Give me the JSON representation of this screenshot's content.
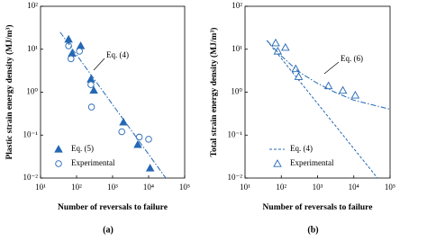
{
  "chart_data": [
    {
      "type": "scatter",
      "log_x": true,
      "log_y": true,
      "grid": false,
      "legend": "lower left",
      "x_label": "Number of reversals to failure",
      "y_label": "Plastic strain energy density (MJ/m³)",
      "caption": "(a)",
      "annotation": "Eq. (4)",
      "xlim": [
        10,
        100000
      ],
      "ylim": [
        0.01,
        100
      ],
      "xticks": [
        {
          "value": 10,
          "label": "10¹"
        },
        {
          "value": 100,
          "label": "10²"
        },
        {
          "value": 1000,
          "label": "10³"
        },
        {
          "value": 10000,
          "label": "10⁴"
        },
        {
          "value": 100000,
          "label": "10⁵"
        }
      ],
      "yticks": [
        {
          "value": 0.01,
          "label": "10⁻²"
        },
        {
          "value": 0.1,
          "label": "10⁻¹"
        },
        {
          "value": 1,
          "label": "10⁰"
        },
        {
          "value": 10,
          "label": "10¹"
        },
        {
          "value": 100,
          "label": "10²"
        }
      ],
      "series": [
        {
          "name": "Eq. (5)",
          "color": "#2468b4",
          "style": "triangle-filled",
          "x": [
            60,
            75,
            130,
            250,
            300,
            2000,
            5000,
            11000
          ],
          "values": [
            17,
            8,
            12,
            2,
            1.1,
            0.2,
            0.06,
            0.017
          ]
        },
        {
          "name": "Experimental",
          "color": "#2468b4",
          "style": "circle-open",
          "x": [
            60,
            70,
            120,
            250,
            260,
            1800,
            5500,
            10000
          ],
          "values": [
            12,
            6,
            9,
            1.5,
            0.45,
            0.12,
            0.09,
            0.08
          ]
        },
        {
          "color": "#2468b4",
          "style": "dashdot",
          "x": [
            35,
            30000
          ],
          "values": [
            25,
            0.01
          ]
        }
      ]
    },
    {
      "type": "scatter",
      "log_x": true,
      "log_y": true,
      "grid": false,
      "legend": "lower left",
      "x_label": "Number of reversals to failure",
      "y_label": "Total strain energy density (MJ/m³)",
      "caption": "(b)",
      "annotation": "Eq. (6)",
      "xlim": [
        10,
        100000
      ],
      "ylim": [
        0.01,
        100
      ],
      "xticks": [
        {
          "value": 10,
          "label": "10¹"
        },
        {
          "value": 100,
          "label": "10²"
        },
        {
          "value": 1000,
          "label": "10³"
        },
        {
          "value": 10000,
          "label": "10⁴"
        },
        {
          "value": 100000,
          "label": "10⁵"
        }
      ],
      "yticks": [
        {
          "value": 0.01,
          "label": "10⁻²"
        },
        {
          "value": 0.1,
          "label": "10⁻¹"
        },
        {
          "value": 1,
          "label": "10⁰"
        },
        {
          "value": 10,
          "label": "10¹"
        },
        {
          "value": 100,
          "label": "10²"
        }
      ],
      "series": [
        {
          "name": "Eq. (4)",
          "color": "#2468b4",
          "style": "dashed",
          "x": [
            40,
            45000
          ],
          "values": [
            16,
            0.01
          ]
        },
        {
          "name": "Experimental",
          "color": "#2468b4",
          "style": "triangle-open",
          "x": [
            70,
            80,
            130,
            250,
            300,
            2000,
            5000,
            11000
          ],
          "values": [
            14,
            9,
            11,
            3.5,
            2.3,
            1.4,
            1.1,
            0.85
          ]
        },
        {
          "color": "#2468b4",
          "style": "dashdot",
          "x": [
            40,
            100,
            300,
            1000,
            3000,
            10000,
            100000
          ],
          "values": [
            16,
            7,
            3,
            1.6,
            1.0,
            0.65,
            0.4
          ]
        }
      ]
    }
  ]
}
